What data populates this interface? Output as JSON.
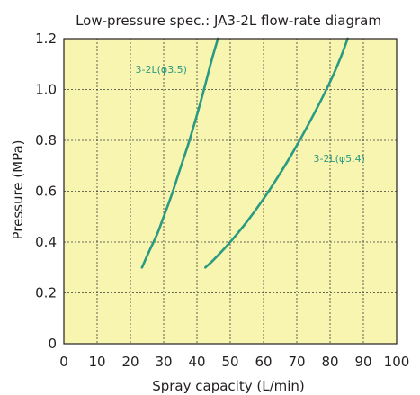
{
  "chart_data": {
    "type": "line",
    "title": "Low-pressure spec.: JA3-2L flow-rate diagram",
    "xlabel": "Spray capacity (L/min)",
    "ylabel": "Pressure (MPa)",
    "xlim": [
      0,
      100
    ],
    "ylim": [
      0,
      1.2
    ],
    "x_ticks": [
      "0",
      "10",
      "20",
      "30",
      "40",
      "50",
      "60",
      "70",
      "80",
      "90",
      "100"
    ],
    "y_ticks": [
      "0",
      "0.2",
      "0.4",
      "0.6",
      "0.8",
      "1.0",
      "1.2"
    ],
    "grid": true,
    "plot_background": "#f7f5b0",
    "line_color": "#2a9a82",
    "series": [
      {
        "name": "3-2L(φ3.5)",
        "x": [
          23.5,
          25.5,
          28,
          30,
          32.5,
          35,
          37.5,
          40,
          42.5,
          44.5,
          46.3
        ],
        "y": [
          0.3,
          0.36,
          0.43,
          0.5,
          0.59,
          0.69,
          0.79,
          0.9,
          1.02,
          1.12,
          1.2
        ]
      },
      {
        "name": "3-2L(φ5.4)",
        "x": [
          42.5,
          45,
          50,
          55,
          60,
          65,
          70,
          75,
          80,
          83,
          85.3
        ],
        "y": [
          0.3,
          0.33,
          0.4,
          0.48,
          0.57,
          0.67,
          0.78,
          0.9,
          1.03,
          1.12,
          1.2
        ]
      }
    ]
  }
}
